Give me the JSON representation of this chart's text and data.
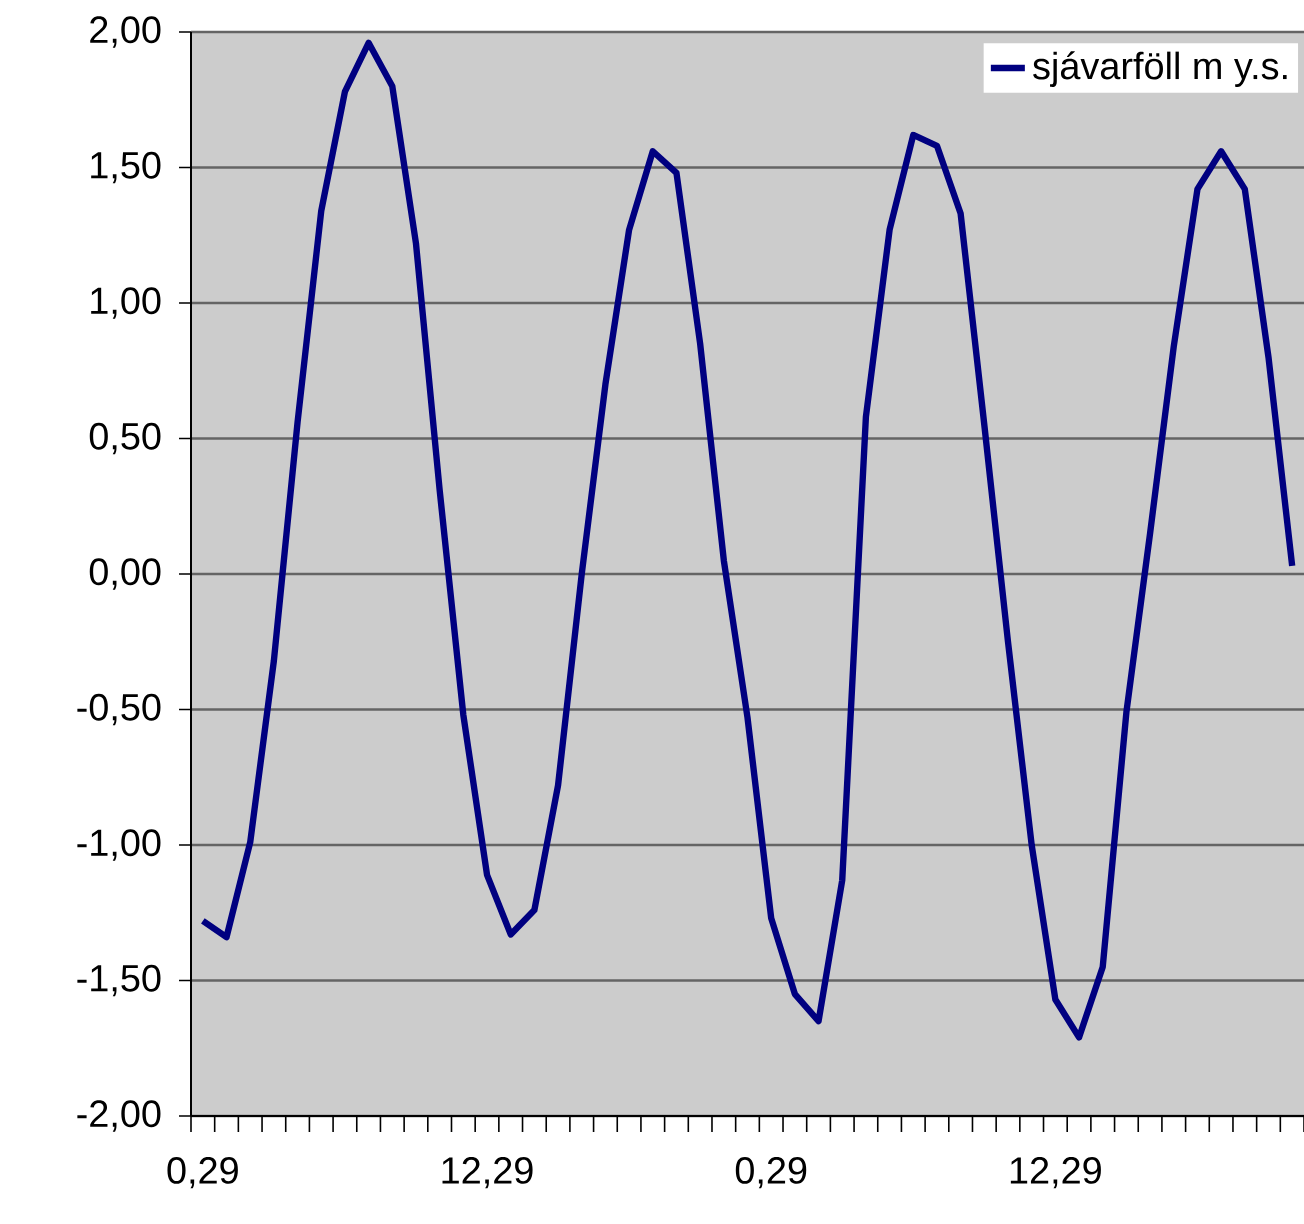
{
  "chart_data": {
    "type": "line",
    "categories": [
      "0,29",
      null,
      null,
      null,
      null,
      null,
      null,
      null,
      null,
      null,
      null,
      null,
      "12,29",
      null,
      null,
      null,
      null,
      null,
      null,
      null,
      null,
      null,
      null,
      null,
      "0,29",
      null,
      null,
      null,
      null,
      null,
      null,
      null,
      null,
      null,
      null,
      null,
      "12,29",
      null,
      null,
      null,
      null,
      null,
      null,
      null,
      null,
      null,
      null
    ],
    "series": [
      {
        "name": "sjávarföll m y.s.",
        "color": "#000080",
        "values": [
          -1.28,
          -1.34,
          -0.99,
          -0.32,
          0.56,
          1.34,
          1.78,
          1.96,
          1.8,
          1.22,
          0.31,
          -0.52,
          -1.11,
          -1.33,
          -1.24,
          -0.78,
          0.0,
          0.7,
          1.27,
          1.56,
          1.48,
          0.85,
          0.05,
          -0.53,
          -1.27,
          -1.55,
          -1.65,
          -1.13,
          0.58,
          1.27,
          1.62,
          1.58,
          1.33,
          0.55,
          -0.25,
          -1.0,
          -1.57,
          -1.71,
          -1.45,
          -0.51,
          0.15,
          0.84,
          1.42,
          1.56,
          1.42,
          0.8,
          0.03
        ]
      }
    ],
    "ylim": [
      -2,
      2
    ],
    "yticks": [
      {
        "value": -2,
        "label": "-2,00"
      },
      {
        "value": -1.5,
        "label": "-1,50"
      },
      {
        "value": -1,
        "label": "-1,00"
      },
      {
        "value": -0.5,
        "label": "-0,50"
      },
      {
        "value": 0,
        "label": "0,00"
      },
      {
        "value": 0.5,
        "label": "0,50"
      },
      {
        "value": 1,
        "label": "1,00"
      },
      {
        "value": 1.5,
        "label": "1,50"
      },
      {
        "value": 2,
        "label": "2,00"
      }
    ],
    "grid": "y",
    "legend": "top right",
    "marker": "none",
    "line_style": "solid"
  }
}
